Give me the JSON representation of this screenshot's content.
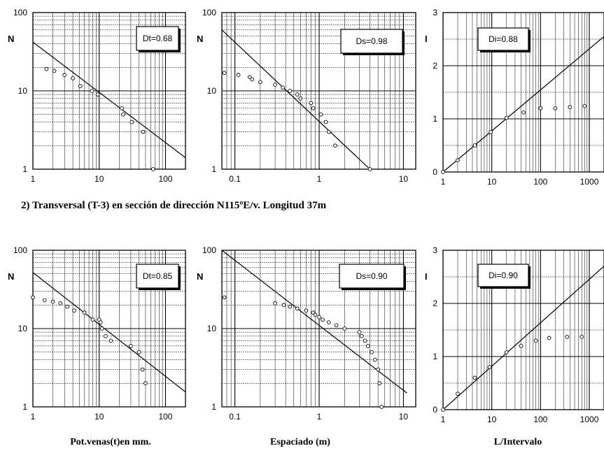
{
  "section_title": "2) Transversal (T-3) en sección de dirección N115ºE/v. Longitud 37m",
  "xlabels": [
    "Pot.venas(t)en mm.",
    "Espaciado (m)",
    "L/Intervalo"
  ],
  "chart_data": [
    {
      "type": "scatter",
      "xscale": "log",
      "yscale": "log",
      "xlim": [
        1,
        200
      ],
      "ylim": [
        1,
        100
      ],
      "xticks": [
        "1",
        "10",
        "100"
      ],
      "yticks": [
        "1",
        "10",
        "100"
      ],
      "ylabel": "N",
      "box_label": "Dt=0.68",
      "points": [
        [
          1.6,
          19
        ],
        [
          2.1,
          18
        ],
        [
          3,
          16
        ],
        [
          4,
          14.5
        ],
        [
          5.2,
          11.5
        ],
        [
          7.8,
          10
        ],
        [
          9.5,
          9
        ],
        [
          22,
          6
        ],
        [
          23,
          5
        ],
        [
          31,
          4
        ],
        [
          46,
          3
        ],
        [
          65,
          1
        ]
      ],
      "fit": [
        [
          1,
          42
        ],
        [
          200,
          1.4
        ]
      ]
    },
    {
      "type": "scatter",
      "xscale": "log",
      "yscale": "log",
      "xlim": [
        0.07,
        14
      ],
      "ylim": [
        1,
        100
      ],
      "xticks": [
        "0.1",
        "1",
        "10"
      ],
      "yticks": [
        "1",
        "10",
        "100"
      ],
      "ylabel": "N",
      "box_label": "Ds=0.98",
      "points": [
        [
          0.075,
          17
        ],
        [
          0.11,
          16
        ],
        [
          0.15,
          15
        ],
        [
          0.16,
          14
        ],
        [
          0.2,
          13
        ],
        [
          0.3,
          12
        ],
        [
          0.37,
          11
        ],
        [
          0.45,
          10
        ],
        [
          0.55,
          9
        ],
        [
          0.6,
          8
        ],
        [
          0.8,
          7
        ],
        [
          0.85,
          6
        ],
        [
          1.05,
          5
        ],
        [
          1.2,
          4
        ],
        [
          1.3,
          3
        ],
        [
          1.55,
          2
        ],
        [
          4,
          1
        ]
      ],
      "fit": [
        [
          0.07,
          60
        ],
        [
          4,
          1
        ]
      ]
    },
    {
      "type": "scatter",
      "xscale": "log",
      "yscale": "linear",
      "xlim": [
        1,
        2000
      ],
      "ylim": [
        0,
        3
      ],
      "xticks": [
        "1",
        "10",
        "100",
        "1000"
      ],
      "yticks": [
        "0",
        "1",
        "2",
        "3"
      ],
      "ylabel": "I",
      "box_label": "Di=0.88",
      "points": [
        [
          1,
          0
        ],
        [
          2,
          0.22
        ],
        [
          4.5,
          0.5
        ],
        [
          9.5,
          0.75
        ],
        [
          20,
          1.02
        ],
        [
          45,
          1.12
        ],
        [
          100,
          1.2
        ],
        [
          200,
          1.2
        ],
        [
          400,
          1.22
        ],
        [
          800,
          1.24
        ]
      ],
      "fit": [
        [
          1,
          0
        ],
        [
          2000,
          2.55
        ]
      ]
    },
    {
      "type": "scatter",
      "xscale": "log",
      "yscale": "log",
      "xlim": [
        1,
        200
      ],
      "ylim": [
        1,
        100
      ],
      "xticks": [
        "1",
        "10",
        "100"
      ],
      "yticks": [
        "1",
        "10",
        "100"
      ],
      "ylabel": "N",
      "box_label": "Dt=0.85",
      "points": [
        [
          1,
          25
        ],
        [
          1.5,
          23
        ],
        [
          2,
          22
        ],
        [
          2.6,
          21
        ],
        [
          3.3,
          19
        ],
        [
          4.2,
          17
        ],
        [
          6,
          16
        ],
        [
          8,
          13
        ],
        [
          10,
          13
        ],
        [
          10.5,
          12
        ],
        [
          11,
          10
        ],
        [
          12.5,
          8
        ],
        [
          15,
          7
        ],
        [
          30,
          6
        ],
        [
          40,
          5
        ],
        [
          45,
          3
        ],
        [
          50,
          2
        ]
      ],
      "fit": [
        [
          1,
          52
        ],
        [
          200,
          1.55
        ]
      ]
    },
    {
      "type": "scatter",
      "xscale": "log",
      "yscale": "log",
      "xlim": [
        0.07,
        14
      ],
      "ylim": [
        1,
        100
      ],
      "xticks": [
        "0.1",
        "1",
        "10"
      ],
      "yticks": [
        "1",
        "10",
        "100"
      ],
      "ylabel": "N",
      "box_label": "Ds=0.90",
      "points": [
        [
          0.075,
          25
        ],
        [
          0.3,
          21
        ],
        [
          0.38,
          20
        ],
        [
          0.45,
          19
        ],
        [
          0.55,
          18
        ],
        [
          0.7,
          17
        ],
        [
          0.85,
          16
        ],
        [
          0.9,
          15
        ],
        [
          1,
          14
        ],
        [
          1.1,
          13
        ],
        [
          1.3,
          12
        ],
        [
          1.6,
          11
        ],
        [
          2,
          10
        ],
        [
          3,
          9
        ],
        [
          3.2,
          8
        ],
        [
          3.5,
          7
        ],
        [
          3.8,
          6
        ],
        [
          4.2,
          5
        ],
        [
          4.6,
          4
        ],
        [
          5,
          3
        ],
        [
          5.2,
          2
        ],
        [
          5.5,
          1
        ]
      ],
      "fit": [
        [
          0.07,
          100
        ],
        [
          11,
          1.5
        ]
      ]
    },
    {
      "type": "scatter",
      "xscale": "log",
      "yscale": "linear",
      "xlim": [
        1,
        2000
      ],
      "ylim": [
        0,
        3
      ],
      "xticks": [
        "1",
        "10",
        "100",
        "1000"
      ],
      "yticks": [
        "0",
        "1",
        "2",
        "3"
      ],
      "ylabel": "I",
      "box_label": "Di=0.90",
      "points": [
        [
          1,
          0
        ],
        [
          2,
          0.3
        ],
        [
          4.5,
          0.6
        ],
        [
          9,
          0.8
        ],
        [
          20,
          1.08
        ],
        [
          40,
          1.2
        ],
        [
          80,
          1.3
        ],
        [
          150,
          1.35
        ],
        [
          350,
          1.37
        ],
        [
          700,
          1.37
        ]
      ],
      "fit": [
        [
          1,
          0
        ],
        [
          2000,
          2.7
        ]
      ]
    }
  ]
}
